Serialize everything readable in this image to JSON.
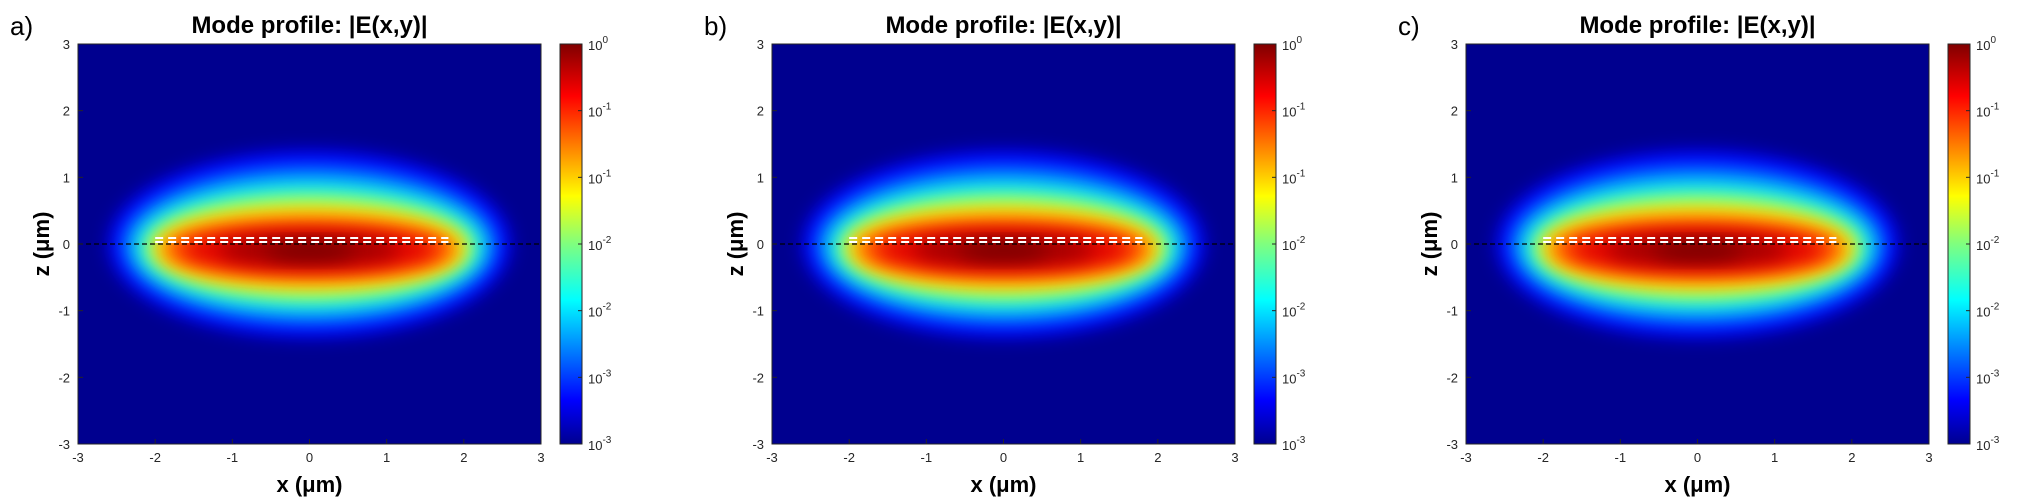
{
  "chart_data": [
    {
      "type": "heatmap",
      "panel_label": "a)",
      "title": "Mode profile: |E(x,y)|",
      "xlabel": "x (μm)",
      "ylabel": "z (μm)",
      "xlim": [
        -3,
        3
      ],
      "ylim": [
        -3,
        3
      ],
      "xticks": [
        "-3",
        "-2",
        "-1",
        "0",
        "1",
        "2",
        "3"
      ],
      "yticks": [
        "3",
        "2",
        "1",
        "0",
        "-1",
        "-2",
        "-3"
      ],
      "colorbar": {
        "scale": "log",
        "range": [
          0.001,
          1
        ],
        "colormap": "jet",
        "ticks": [
          {
            "base": "10",
            "exp": "0"
          },
          {
            "base": "10",
            "exp": "-1"
          },
          {
            "base": "10",
            "exp": "-1"
          },
          {
            "base": "10",
            "exp": "-2"
          },
          {
            "base": "10",
            "exp": "-2"
          },
          {
            "base": "10",
            "exp": "-3"
          },
          {
            "base": "10",
            "exp": "-3"
          }
        ]
      },
      "mode": {
        "center_x": 0.0,
        "center_z": 0.0,
        "half_width_x": 2.6,
        "half_height_z": 1.4
      },
      "guide_lines": [
        {
          "style": "dashed",
          "color": "#000000",
          "x_range": [
            -3,
            3
          ],
          "z": 0.0
        },
        {
          "style": "dashed",
          "color": "#ffffff",
          "x_range": [
            -2.0,
            1.8
          ],
          "z": 0.09
        },
        {
          "style": "dashed",
          "color": "#ffffff",
          "x_range": [
            -2.0,
            1.8
          ],
          "z": 0.0
        }
      ]
    },
    {
      "type": "heatmap",
      "panel_label": "b)",
      "title": "Mode profile: |E(x,y)|",
      "xlabel": "x (μm)",
      "ylabel": "z (μm)",
      "xlim": [
        -3,
        3
      ],
      "ylim": [
        -3,
        3
      ],
      "xticks": [
        "-3",
        "-2",
        "-1",
        "0",
        "1",
        "2",
        "3"
      ],
      "yticks": [
        "3",
        "2",
        "1",
        "0",
        "-1",
        "-2",
        "-3"
      ],
      "colorbar": {
        "scale": "log",
        "range": [
          0.001,
          1
        ],
        "colormap": "jet",
        "ticks": [
          {
            "base": "10",
            "exp": "0"
          },
          {
            "base": "10",
            "exp": "-1"
          },
          {
            "base": "10",
            "exp": "-1"
          },
          {
            "base": "10",
            "exp": "-2"
          },
          {
            "base": "10",
            "exp": "-2"
          },
          {
            "base": "10",
            "exp": "-3"
          },
          {
            "base": "10",
            "exp": "-3"
          }
        ]
      },
      "mode": {
        "center_x": 0.0,
        "center_z": 0.0,
        "half_width_x": 2.6,
        "half_height_z": 1.4
      },
      "guide_lines": [
        {
          "style": "dashed",
          "color": "#000000",
          "x_range": [
            -3,
            3
          ],
          "z": 0.0
        },
        {
          "style": "dashed",
          "color": "#ffffff",
          "x_range": [
            -2.0,
            1.8
          ],
          "z": 0.09
        },
        {
          "style": "dashed",
          "color": "#ffffff",
          "x_range": [
            -2.0,
            1.8
          ],
          "z": 0.0
        }
      ]
    },
    {
      "type": "heatmap",
      "panel_label": "c)",
      "title": "Mode profile: |E(x,y)|",
      "xlabel": "x (μm)",
      "ylabel": "z (μm)",
      "xlim": [
        -3,
        3
      ],
      "ylim": [
        -3,
        3
      ],
      "xticks": [
        "-3",
        "-2",
        "-1",
        "0",
        "1",
        "2",
        "3"
      ],
      "yticks": [
        "3",
        "2",
        "1",
        "0",
        "-1",
        "-2",
        "-3"
      ],
      "colorbar": {
        "scale": "log",
        "range": [
          0.001,
          1
        ],
        "colormap": "jet",
        "ticks": [
          {
            "base": "10",
            "exp": "0"
          },
          {
            "base": "10",
            "exp": "-1"
          },
          {
            "base": "10",
            "exp": "-1"
          },
          {
            "base": "10",
            "exp": "-2"
          },
          {
            "base": "10",
            "exp": "-2"
          },
          {
            "base": "10",
            "exp": "-3"
          },
          {
            "base": "10",
            "exp": "-3"
          }
        ]
      },
      "mode": {
        "center_x": 0.0,
        "center_z": 0.0,
        "half_width_x": 2.6,
        "half_height_z": 1.4
      },
      "guide_lines": [
        {
          "style": "dashed",
          "color": "#000000",
          "x_range": [
            -3,
            3
          ],
          "z": 0.0
        },
        {
          "style": "dashed",
          "color": "#ffffff",
          "x_range": [
            -2.0,
            1.8
          ],
          "z": 0.09
        },
        {
          "style": "dashed",
          "color": "#ffffff",
          "x_range": [
            -2.0,
            1.8
          ],
          "z": 0.0
        }
      ]
    }
  ]
}
